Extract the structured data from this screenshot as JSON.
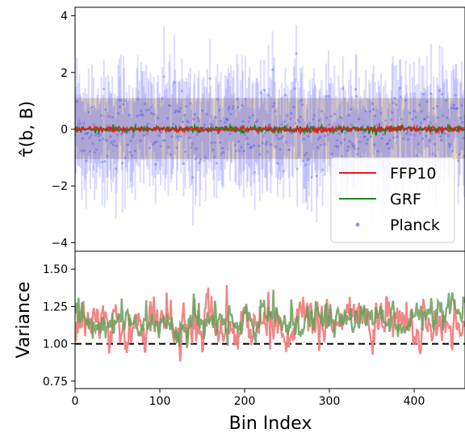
{
  "chart_data": [
    {
      "panel": "top",
      "type": "scatter",
      "ylabel": "τ̂(b, B)",
      "xlim": [
        0,
        460
      ],
      "ylim": [
        -4.3,
        4.3
      ],
      "yticks": [
        "−4",
        "−2",
        "0",
        "2",
        "4"
      ],
      "ytick_values": [
        -4,
        -2,
        0,
        2,
        4
      ],
      "grid": false,
      "legend_position": "bottom-right",
      "band": {
        "name": "",
        "lower": -1.05,
        "upper": 1.1,
        "color": "#c9b48a"
      },
      "series": [
        {
          "name": "FFP10",
          "kind": "line",
          "color": "#e41a1c",
          "summary": {
            "mean": 0.0,
            "typical_range": [
              -0.15,
              0.12
            ]
          }
        },
        {
          "name": "GRF",
          "kind": "line",
          "color": "#1a8a1a",
          "summary": {
            "mean": 0.0,
            "typical_range": [
              -0.12,
              0.12
            ]
          }
        },
        {
          "name": "Planck",
          "kind": "points-with-errorbars",
          "color": "#4b4bff",
          "summary": {
            "mean": 0.0,
            "point_spread": 0.7,
            "errorbar_half_width": 1.2,
            "extreme_high": 4.2,
            "extreme_low": -3.7
          }
        }
      ]
    },
    {
      "panel": "bottom",
      "type": "line",
      "xlabel": "Bin Index",
      "ylabel": "Variance",
      "xlim": [
        0,
        460
      ],
      "xticks": [
        "0",
        "100",
        "200",
        "300",
        "400"
      ],
      "xtick_values": [
        0,
        100,
        200,
        300,
        400
      ],
      "ylim": [
        0.7,
        1.62
      ],
      "yticks": [
        "0.75",
        "1.00",
        "1.25",
        "1.50"
      ],
      "ytick_values": [
        0.75,
        1.0,
        1.25,
        1.5
      ],
      "reference_line": {
        "y": 1.0,
        "style": "dashed",
        "color": "#000000"
      },
      "series": [
        {
          "name": "FFP10",
          "color": "#f08080",
          "summary": {
            "mean": 1.1,
            "min": 0.86,
            "max": 1.52
          }
        },
        {
          "name": "GRF",
          "color": "#6a9e5a",
          "summary": {
            "mean": 1.12,
            "min": 0.95,
            "max": 1.42
          }
        }
      ]
    }
  ],
  "legend": {
    "items": [
      "FFP10",
      "GRF",
      "Planck"
    ]
  }
}
